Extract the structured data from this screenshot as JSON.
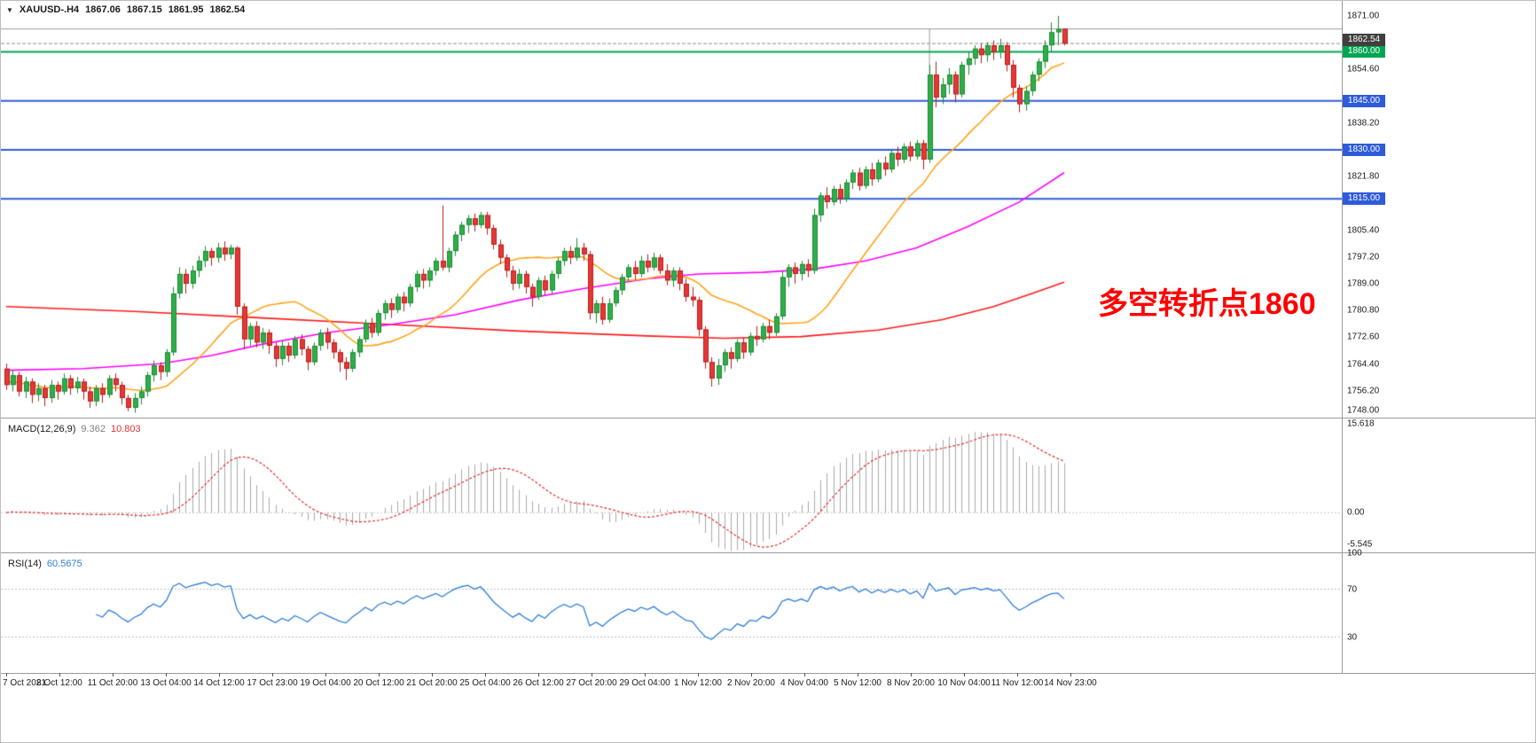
{
  "header": {
    "symbol": "XAUUSD-.H4",
    "open": "1867.06",
    "high": "1867.15",
    "low": "1861.95",
    "close": "1862.54"
  },
  "annotation": {
    "text": "多空转折点1860",
    "color": "#ff0000"
  },
  "chart_data": {
    "type": "candlestick",
    "symbol": "XAUUSD-",
    "timeframe": "H4",
    "price_scale": {
      "max": 1875.6,
      "min": 1748.0
    },
    "price_grid": [
      {
        "value": 1871.0,
        "show": true
      },
      {
        "value": 1862.8,
        "show": false
      },
      {
        "value": 1854.6,
        "show": true
      },
      {
        "value": 1846.4,
        "show": false
      },
      {
        "value": 1838.2,
        "show": true
      },
      {
        "value": 1830.0,
        "show": false
      },
      {
        "value": 1821.8,
        "show": true
      },
      {
        "value": 1813.6,
        "show": false
      },
      {
        "value": 1805.4,
        "show": true
      },
      {
        "value": 1797.2,
        "show": true
      },
      {
        "value": 1789.0,
        "show": true
      },
      {
        "value": 1780.8,
        "show": true
      },
      {
        "value": 1772.6,
        "show": true
      },
      {
        "value": 1764.4,
        "show": true
      },
      {
        "value": 1756.2,
        "show": true
      },
      {
        "value": 1748.0,
        "show": true
      }
    ],
    "hlines": [
      {
        "price": 1860.0,
        "label": "1860.00",
        "color": "#00a651"
      },
      {
        "price": 1845.0,
        "label": "1845.00",
        "color": "#2e5bda"
      },
      {
        "price": 1830.0,
        "label": "1830.00",
        "color": "#2e5bda"
      },
      {
        "price": 1815.0,
        "label": "1815.00",
        "color": "#2e5bda"
      }
    ],
    "bid": {
      "price": 1862.54,
      "label": "1862.54",
      "bg": "#3f3f3f"
    },
    "extra": {
      "hline_price": 1867.0,
      "vline": {
        "bar": 144,
        "from_price": 1867.0,
        "to_price": 1846.0
      }
    },
    "colors": {
      "up": "#2fae4a",
      "up_border": "#1d8a33",
      "down": "#e53935",
      "down_border": "#b71c1c"
    },
    "overlays": {
      "ma_fast": {
        "type": "sma",
        "period": 20,
        "color": "#ffa31a"
      },
      "ma_mid": {
        "type": "polyline",
        "color": "#ff00ff",
        "points": [
          [
            0,
            1762.5
          ],
          [
            12,
            1763
          ],
          [
            24,
            1764.5
          ],
          [
            32,
            1767
          ],
          [
            40,
            1770.5
          ],
          [
            50,
            1774
          ],
          [
            60,
            1776.5
          ],
          [
            70,
            1779.5
          ],
          [
            80,
            1784
          ],
          [
            90,
            1787.5
          ],
          [
            100,
            1790.5
          ],
          [
            108,
            1792
          ],
          [
            118,
            1792.5
          ],
          [
            126,
            1793.5
          ],
          [
            134,
            1796
          ],
          [
            142,
            1800
          ],
          [
            150,
            1806.5
          ],
          [
            158,
            1814
          ],
          [
            165,
            1823
          ]
        ]
      },
      "ma_slow": {
        "type": "polyline",
        "color": "#ff1a1a",
        "points": [
          [
            0,
            1782
          ],
          [
            20,
            1780.5
          ],
          [
            40,
            1778.5
          ],
          [
            60,
            1776.5
          ],
          [
            80,
            1774.5
          ],
          [
            100,
            1773
          ],
          [
            112,
            1772.3
          ],
          [
            124,
            1772.8
          ],
          [
            136,
            1774.8
          ],
          [
            146,
            1778
          ],
          [
            154,
            1782
          ],
          [
            160,
            1786
          ],
          [
            165,
            1789.5
          ]
        ]
      }
    },
    "candles": [
      [
        1763,
        1764.5,
        1756.5,
        1758
      ],
      [
        1758,
        1762.5,
        1756,
        1761
      ],
      [
        1761,
        1762,
        1754.5,
        1756
      ],
      [
        1756,
        1760.5,
        1754,
        1759
      ],
      [
        1759,
        1760,
        1752.5,
        1755
      ],
      [
        1755,
        1758.5,
        1753,
        1757
      ],
      [
        1757,
        1758,
        1751.5,
        1754
      ],
      [
        1754,
        1759.5,
        1752.5,
        1758
      ],
      [
        1758,
        1759,
        1753.5,
        1756
      ],
      [
        1756,
        1761.5,
        1755,
        1760
      ],
      [
        1760,
        1761,
        1755,
        1757
      ],
      [
        1757,
        1760.5,
        1755.5,
        1759
      ],
      [
        1759,
        1760,
        1753.5,
        1756
      ],
      [
        1756,
        1757.5,
        1751,
        1753
      ],
      [
        1753,
        1758,
        1751.5,
        1757
      ],
      [
        1757,
        1758.5,
        1752.5,
        1755
      ],
      [
        1755,
        1761,
        1754,
        1760
      ],
      [
        1760,
        1761.5,
        1756,
        1758
      ],
      [
        1758,
        1759,
        1752,
        1754
      ],
      [
        1754,
        1755,
        1750,
        1751
      ],
      [
        1751,
        1755.5,
        1749.5,
        1754
      ],
      [
        1754,
        1757.5,
        1752,
        1756
      ],
      [
        1756,
        1762,
        1754.5,
        1761
      ],
      [
        1761,
        1765.5,
        1759,
        1764
      ],
      [
        1764,
        1765,
        1759.5,
        1762
      ],
      [
        1762,
        1769,
        1760.5,
        1768
      ],
      [
        1768,
        1788,
        1767,
        1786
      ],
      [
        1786,
        1794,
        1784.5,
        1792
      ],
      [
        1792,
        1793.5,
        1786,
        1789
      ],
      [
        1789,
        1794.5,
        1787.5,
        1793
      ],
      [
        1793,
        1797.5,
        1791,
        1796
      ],
      [
        1796,
        1800.5,
        1794,
        1799
      ],
      [
        1799,
        1800,
        1794.5,
        1797
      ],
      [
        1797,
        1801.5,
        1795.5,
        1800
      ],
      [
        1800,
        1802,
        1796,
        1798
      ],
      [
        1798,
        1801,
        1796.5,
        1800
      ],
      [
        1800,
        1800.5,
        1779.5,
        1782
      ],
      [
        1782,
        1783,
        1769,
        1772
      ],
      [
        1772,
        1777,
        1770,
        1776
      ],
      [
        1776,
        1777.5,
        1769.5,
        1771
      ],
      [
        1771,
        1775.5,
        1769,
        1774
      ],
      [
        1774,
        1775,
        1767.5,
        1770
      ],
      [
        1770,
        1771,
        1763.5,
        1766
      ],
      [
        1766,
        1771.5,
        1764,
        1770
      ],
      [
        1770,
        1771,
        1765,
        1767
      ],
      [
        1767,
        1773,
        1766,
        1772
      ],
      [
        1772,
        1773.5,
        1767,
        1769
      ],
      [
        1769,
        1770,
        1762.5,
        1765
      ],
      [
        1765,
        1771,
        1764,
        1770
      ],
      [
        1770,
        1775,
        1768.5,
        1774
      ],
      [
        1774,
        1775.5,
        1769,
        1771
      ],
      [
        1771,
        1772,
        1766,
        1768
      ],
      [
        1768,
        1769,
        1762,
        1765
      ],
      [
        1765,
        1766.5,
        1759.5,
        1763
      ],
      [
        1763,
        1769,
        1762,
        1768
      ],
      [
        1768,
        1773,
        1766.5,
        1772
      ],
      [
        1772,
        1778,
        1771,
        1777
      ],
      [
        1777,
        1778.5,
        1772.5,
        1774
      ],
      [
        1774,
        1781,
        1773,
        1780
      ],
      [
        1780,
        1784,
        1778,
        1783
      ],
      [
        1783,
        1784.5,
        1778.5,
        1781
      ],
      [
        1781,
        1786,
        1780,
        1785
      ],
      [
        1785,
        1786.5,
        1780.5,
        1783
      ],
      [
        1783,
        1789,
        1782,
        1788
      ],
      [
        1788,
        1793,
        1786.5,
        1792
      ],
      [
        1792,
        1793.5,
        1787.5,
        1790
      ],
      [
        1790,
        1794,
        1788,
        1793
      ],
      [
        1793,
        1797,
        1791.5,
        1796
      ],
      [
        1796,
        1813,
        1793,
        1794
      ],
      [
        1794,
        1800,
        1792.5,
        1799
      ],
      [
        1799,
        1805,
        1797.5,
        1804
      ],
      [
        1804,
        1808,
        1802,
        1807
      ],
      [
        1807,
        1810,
        1804.5,
        1809
      ],
      [
        1809,
        1810.5,
        1805,
        1807
      ],
      [
        1807,
        1811,
        1806,
        1810
      ],
      [
        1810,
        1811,
        1804,
        1806
      ],
      [
        1806,
        1807,
        1799.5,
        1801
      ],
      [
        1801,
        1802.5,
        1795,
        1797
      ],
      [
        1797,
        1798,
        1791,
        1793
      ],
      [
        1793,
        1794.5,
        1787,
        1789
      ],
      [
        1789,
        1793.5,
        1787.5,
        1792
      ],
      [
        1792,
        1793,
        1786,
        1788
      ],
      [
        1788,
        1789,
        1782,
        1785
      ],
      [
        1785,
        1791,
        1784,
        1790
      ],
      [
        1790,
        1791.5,
        1785.5,
        1787
      ],
      [
        1787,
        1793,
        1786,
        1792
      ],
      [
        1792,
        1797,
        1790.5,
        1796
      ],
      [
        1796,
        1800,
        1794.5,
        1799
      ],
      [
        1799,
        1800.5,
        1795,
        1797
      ],
      [
        1797,
        1803,
        1796,
        1800
      ],
      [
        1800,
        1801.5,
        1796,
        1798
      ],
      [
        1798,
        1799,
        1778,
        1780
      ],
      [
        1780,
        1784,
        1777,
        1783
      ],
      [
        1783,
        1785,
        1776.5,
        1778
      ],
      [
        1778,
        1784.5,
        1777,
        1783
      ],
      [
        1783,
        1788,
        1782,
        1787
      ],
      [
        1787,
        1792,
        1785.5,
        1791
      ],
      [
        1791,
        1795,
        1789.5,
        1794
      ],
      [
        1794,
        1796,
        1790,
        1792
      ],
      [
        1792,
        1797.5,
        1791,
        1796
      ],
      [
        1796,
        1798,
        1792.5,
        1794
      ],
      [
        1794,
        1798.5,
        1793,
        1797
      ],
      [
        1797,
        1798,
        1792,
        1793
      ],
      [
        1793,
        1795,
        1788.5,
        1790
      ],
      [
        1790,
        1794,
        1788,
        1793
      ],
      [
        1793,
        1794,
        1787,
        1789
      ],
      [
        1789,
        1790.5,
        1783.5,
        1785
      ],
      [
        1785,
        1788,
        1782,
        1784
      ],
      [
        1784,
        1785,
        1773,
        1775
      ],
      [
        1775,
        1776,
        1763,
        1765
      ],
      [
        1765,
        1766.5,
        1757.5,
        1760
      ],
      [
        1760,
        1766,
        1758,
        1764
      ],
      [
        1764,
        1769,
        1762,
        1768
      ],
      [
        1768,
        1769.5,
        1763,
        1766
      ],
      [
        1766,
        1772,
        1765,
        1771
      ],
      [
        1771,
        1772.5,
        1766,
        1768
      ],
      [
        1768,
        1774,
        1767,
        1773
      ],
      [
        1773,
        1776,
        1770,
        1772
      ],
      [
        1772,
        1777,
        1771,
        1776
      ],
      [
        1776,
        1778,
        1772,
        1774
      ],
      [
        1774,
        1780,
        1773,
        1779
      ],
      [
        1779,
        1793,
        1778,
        1791
      ],
      [
        1791,
        1795,
        1788,
        1794
      ],
      [
        1794,
        1795.5,
        1789,
        1792
      ],
      [
        1792,
        1796,
        1790,
        1795
      ],
      [
        1795,
        1796.5,
        1791,
        1793
      ],
      [
        1793,
        1812,
        1792,
        1810
      ],
      [
        1810,
        1817,
        1808,
        1816
      ],
      [
        1816,
        1818.5,
        1812,
        1814
      ],
      [
        1814,
        1819,
        1813,
        1818
      ],
      [
        1818,
        1819.5,
        1813.5,
        1815
      ],
      [
        1815,
        1821,
        1814,
        1820
      ],
      [
        1820,
        1824,
        1818,
        1823
      ],
      [
        1823,
        1824.5,
        1817.5,
        1819
      ],
      [
        1819,
        1825,
        1818,
        1824
      ],
      [
        1824,
        1826,
        1819,
        1821
      ],
      [
        1821,
        1827,
        1820,
        1826
      ],
      [
        1826,
        1828,
        1822,
        1824
      ],
      [
        1824,
        1830,
        1823,
        1829
      ],
      [
        1829,
        1831,
        1825,
        1827
      ],
      [
        1827,
        1832,
        1826,
        1831
      ],
      [
        1831,
        1832.5,
        1826.5,
        1828
      ],
      [
        1828,
        1833,
        1827,
        1832
      ],
      [
        1832,
        1833,
        1824,
        1827
      ],
      [
        1827,
        1856,
        1826,
        1853
      ],
      [
        1853,
        1857,
        1843,
        1846
      ],
      [
        1846,
        1852,
        1844,
        1850
      ],
      [
        1850,
        1855,
        1847,
        1853
      ],
      [
        1853,
        1854,
        1844.5,
        1847
      ],
      [
        1847,
        1857,
        1846,
        1856
      ],
      [
        1856,
        1860,
        1853,
        1858
      ],
      [
        1858,
        1862,
        1856,
        1861
      ],
      [
        1861,
        1862.5,
        1856.5,
        1859
      ],
      [
        1859,
        1863,
        1857,
        1862
      ],
      [
        1862,
        1863.5,
        1857.5,
        1860
      ],
      [
        1860,
        1864,
        1858,
        1862
      ],
      [
        1862,
        1863,
        1854,
        1856
      ],
      [
        1856,
        1857.5,
        1846,
        1849
      ],
      [
        1849,
        1850,
        1841.5,
        1844
      ],
      [
        1844,
        1849.5,
        1842,
        1848
      ],
      [
        1848,
        1854,
        1846.5,
        1853
      ],
      [
        1853,
        1858,
        1851,
        1857
      ],
      [
        1857,
        1863.5,
        1855,
        1862
      ],
      [
        1862,
        1869,
        1860,
        1866
      ],
      [
        1866,
        1871,
        1862,
        1867
      ],
      [
        1867.06,
        1867.15,
        1861.95,
        1862.54
      ]
    ],
    "macd": {
      "label": "MACD(12,26,9)",
      "value_main": "9.362",
      "value_signal": "10.803",
      "range": [
        -7.0,
        16.6
      ],
      "axis": [
        {
          "value": 15.618,
          "label": "15.618"
        },
        {
          "value": 0,
          "label": "0.00"
        },
        {
          "value": -5.545,
          "label": "-5.545"
        }
      ],
      "hist_color": "#aaaaaa",
      "signal_color": "#e03030"
    },
    "rsi": {
      "label": "RSI(14)",
      "value": "60.5675",
      "levels": [
        70,
        30
      ],
      "axis": [
        {
          "value": 100,
          "label": "100"
        },
        {
          "value": 70,
          "label": "70"
        },
        {
          "value": 30,
          "label": "30"
        }
      ],
      "color": "#2f7ed8"
    },
    "time_labels": [
      "7 Oct 2021",
      "8 Oct 12:00",
      "11 Oct 20:00",
      "13 Oct 04:00",
      "14 Oct 12:00",
      "17 Oct 23:00",
      "19 Oct 04:00",
      "20 Oct 12:00",
      "21 Oct 20:00",
      "25 Oct 04:00",
      "26 Oct 12:00",
      "27 Oct 20:00",
      "29 Oct 04:00",
      "1 Nov 12:00",
      "2 Nov 20:00",
      "4 Nov 04:00",
      "5 Nov 12:00",
      "8 Nov 20:00",
      "10 Nov 04:00",
      "11 Nov 12:00",
      "14 Nov 23:00"
    ]
  }
}
